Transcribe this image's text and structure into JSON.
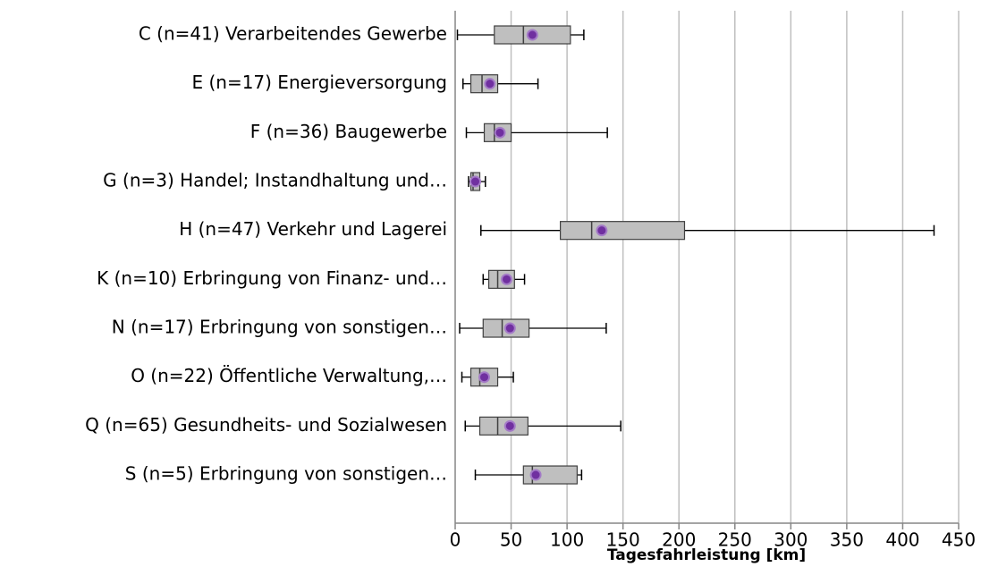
{
  "chart_data": {
    "type": "box",
    "x_label": "Tagesfahrleistung [km]",
    "categories": [
      "C (n=41) Verarbeitendes Gewerbe",
      "E (n=17) Energieversorgung",
      "F (n=36) Baugewerbe",
      "G (n=3) Handel; Instandhaltung und…",
      "H (n=47) Verkehr und Lagerei",
      "K (n=10) Erbringung von Finanz- und…",
      "N (n=17) Erbringung von sonstigen…",
      "O (n=22) Öffentliche Verwaltung,…",
      "Q (n=65) Gesundheits- und Sozialwesen",
      "S (n=5) Erbringung von sonstigen…"
    ],
    "boxes": [
      {
        "min": 2,
        "q1": 35,
        "median": 61,
        "q3": 103,
        "max": 115,
        "mean": 69
      },
      {
        "min": 7,
        "q1": 14,
        "median": 24,
        "q3": 38,
        "max": 74,
        "mean": 31
      },
      {
        "min": 10,
        "q1": 26,
        "median": 35,
        "q3": 50,
        "max": 136,
        "mean": 40
      },
      {
        "min": 12,
        "q1": 14,
        "median": 16,
        "q3": 22,
        "max": 27,
        "mean": 18
      },
      {
        "min": 23,
        "q1": 94,
        "median": 122,
        "q3": 205,
        "max": 428,
        "mean": 131
      },
      {
        "min": 25,
        "q1": 30,
        "median": 38,
        "q3": 53,
        "max": 62,
        "mean": 46
      },
      {
        "min": 4,
        "q1": 25,
        "median": 42,
        "q3": 66,
        "max": 135,
        "mean": 49
      },
      {
        "min": 6,
        "q1": 14,
        "median": 22,
        "q3": 38,
        "max": 52,
        "mean": 26
      },
      {
        "min": 9,
        "q1": 22,
        "median": 38,
        "q3": 65,
        "max": 148,
        "mean": 49
      },
      {
        "min": 18,
        "q1": 61,
        "median": 69,
        "q3": 109,
        "max": 113,
        "mean": 72
      }
    ],
    "box_color": "#bfbfbf",
    "mean_color": "#7030a0",
    "xlim": [
      0,
      450
    ],
    "xticks": [
      0,
      50,
      100,
      150,
      200,
      250,
      300,
      350,
      400,
      450
    ],
    "grid": true
  }
}
